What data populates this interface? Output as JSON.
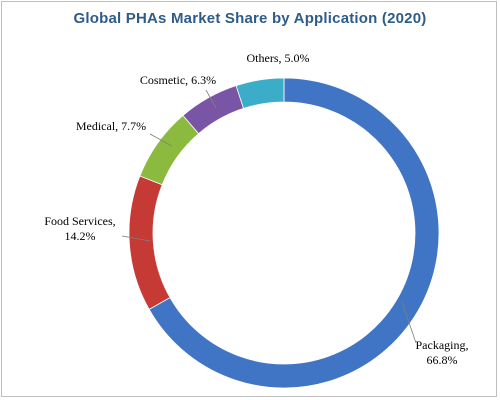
{
  "chart_data": {
    "type": "pie",
    "subtype": "donut",
    "title": "Global PHAs Market Share by Application (2020)",
    "legend": "none",
    "slices": [
      {
        "label": "Packaging",
        "value": 66.8,
        "value_text": "66.8%",
        "color": "#3f75c4"
      },
      {
        "label": "Food Services",
        "value": 14.2,
        "value_text": "14.2%",
        "color": "#c63a36"
      },
      {
        "label": "Medical",
        "value": 7.7,
        "value_text": "7.7%",
        "color": "#8cba3e"
      },
      {
        "label": "Cosmetic",
        "value": 6.3,
        "value_text": "6.3%",
        "color": "#7a55a6"
      },
      {
        "label": "Others",
        "value": 5.0,
        "value_text": "5.0%",
        "color": "#3cadc9"
      }
    ]
  }
}
